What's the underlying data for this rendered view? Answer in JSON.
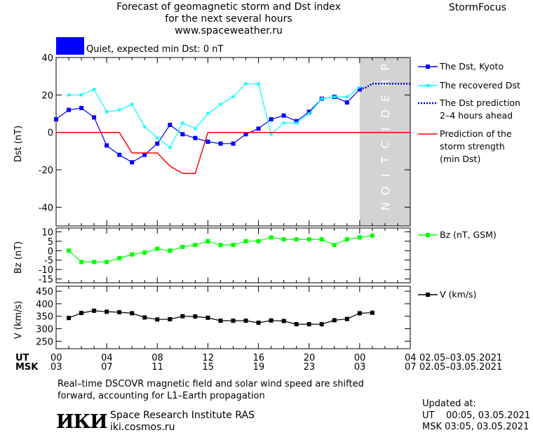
{
  "header": {
    "title_lines": [
      "Forecast of geomagnetic storm and Dst index",
      "for the next several hours",
      "www.spaceweather.ru"
    ],
    "brand": "StormFocus",
    "status_text": "Quiet, expected min Dst: 0 nT",
    "status_color": "#0000ff"
  },
  "legend": {
    "dst_kyoto": "The Dst, Kyoto",
    "recovered": "The recovered Dst",
    "prediction": [
      "The Dst prediction",
      "2–4 hours ahead"
    ],
    "storm_strength": [
      "Prediction of the",
      "storm strength",
      "(min Dst)"
    ],
    "bz": "Bz (nT, GSM)",
    "v": "V (km/s)"
  },
  "time_axis": {
    "ut_label": "UT",
    "msk_label": "MSK",
    "ut_ticks": [
      "00",
      "04",
      "08",
      "12",
      "16",
      "20",
      "00",
      "04"
    ],
    "msk_ticks": [
      "03",
      "07",
      "11",
      "15",
      "19",
      "23",
      "03",
      "07"
    ],
    "ut_range": "02.05–03.05.2021",
    "msk_range": "02.05–03.05.2021"
  },
  "footer": {
    "note": [
      "Real–time DSCOVR magnetic field and solar wind speed are shifted",
      "forward, accounting for L1–Earth propagation"
    ],
    "logo": "ИКИ",
    "institute": "Space Research Institute RAS",
    "site": "iki.cosmos.ru",
    "updated_label": "Updated at:",
    "updated_ut": "UT    00:05, 03.05.2021",
    "updated_msk": "MSK 03:05, 03.05.2021"
  },
  "colors": {
    "dst": "#0000ff",
    "recovered": "#00ffff",
    "prediction_dotted": "#0000cc",
    "storm": "#ff0000",
    "bz": "#00ff00",
    "v": "#000000",
    "prediction_band": "#d3d3d3"
  },
  "chart_data": [
    {
      "type": "line",
      "panel": "dst",
      "ylabel": "Dst (nT)",
      "ylim": [
        -50,
        40
      ],
      "yticks": [
        -40,
        -20,
        0,
        20,
        40
      ],
      "xlim": [
        0,
        28
      ],
      "prediction_band": [
        24,
        28
      ],
      "prediction_band_label": "PREDICTION",
      "series": [
        {
          "name": "The Dst, Kyoto",
          "x": [
            0,
            1,
            2,
            3,
            4,
            5,
            6,
            7,
            8,
            9,
            10,
            11,
            12,
            13,
            14,
            15,
            16,
            17,
            18,
            19,
            20,
            21,
            22,
            23,
            24
          ],
          "values": [
            7,
            12,
            13,
            8,
            -7,
            -12,
            -16,
            -12,
            -6,
            4,
            -1,
            -3,
            -5,
            -6,
            -6,
            -1,
            2,
            7,
            9,
            6,
            11,
            18,
            19,
            16,
            23
          ]
        },
        {
          "name": "The recovered Dst",
          "x": [
            1,
            2,
            3,
            4,
            5,
            6,
            7,
            8,
            9,
            10,
            11,
            12,
            13,
            14,
            15,
            16,
            17,
            18,
            19,
            20,
            21,
            22,
            23,
            24
          ],
          "values": [
            20,
            20,
            23,
            11,
            12,
            15,
            3,
            -3,
            -8,
            5,
            2,
            10,
            15,
            19,
            26,
            26,
            -1,
            5,
            5,
            10,
            18,
            19,
            19,
            24
          ]
        },
        {
          "name": "The Dst prediction 2–4 hours ahead",
          "x": [
            24,
            24.5,
            25,
            26,
            27,
            28
          ],
          "values": [
            23,
            24,
            26,
            26,
            26,
            26
          ]
        },
        {
          "name": "Prediction of the storm strength (min Dst)",
          "x": [
            0,
            5,
            6,
            8,
            9,
            10,
            11,
            12,
            28
          ],
          "values": [
            0,
            0,
            -11,
            -11,
            -18,
            -22,
            -22,
            0,
            0
          ]
        }
      ]
    },
    {
      "type": "line",
      "panel": "bz",
      "ylabel": "Bz (nT)",
      "ylim": [
        -17,
        12
      ],
      "yticks": [
        -15,
        -10,
        -5,
        0,
        5,
        10
      ],
      "xlim": [
        0,
        28
      ],
      "series": [
        {
          "name": "Bz (nT, GSM)",
          "x": [
            1,
            2,
            3,
            4,
            5,
            6,
            7,
            8,
            9,
            10,
            11,
            12,
            13,
            14,
            15,
            16,
            17,
            18,
            19,
            20,
            21,
            22,
            23,
            24,
            25
          ],
          "values": [
            0,
            -6,
            -6,
            -6,
            -4,
            -2,
            -1,
            1,
            0,
            2,
            3,
            5,
            3,
            3,
            5,
            5,
            7,
            6,
            6,
            6,
            6,
            3,
            6,
            7,
            8
          ]
        }
      ]
    },
    {
      "type": "line",
      "panel": "v",
      "ylabel": "V (km/s)",
      "ylim": [
        220,
        470
      ],
      "yticks": [
        250,
        300,
        350,
        400,
        450
      ],
      "xlim": [
        0,
        28
      ],
      "series": [
        {
          "name": "V (km/s)",
          "x": [
            1,
            2,
            3,
            4,
            5,
            6,
            7,
            8,
            9,
            10,
            11,
            12,
            13,
            14,
            15,
            16,
            17,
            18,
            19,
            20,
            21,
            22,
            23,
            24,
            25
          ],
          "values": [
            343,
            363,
            372,
            368,
            366,
            362,
            345,
            337,
            338,
            350,
            349,
            344,
            332,
            332,
            332,
            324,
            333,
            331,
            318,
            318,
            318,
            334,
            339,
            362,
            364
          ]
        }
      ]
    }
  ]
}
